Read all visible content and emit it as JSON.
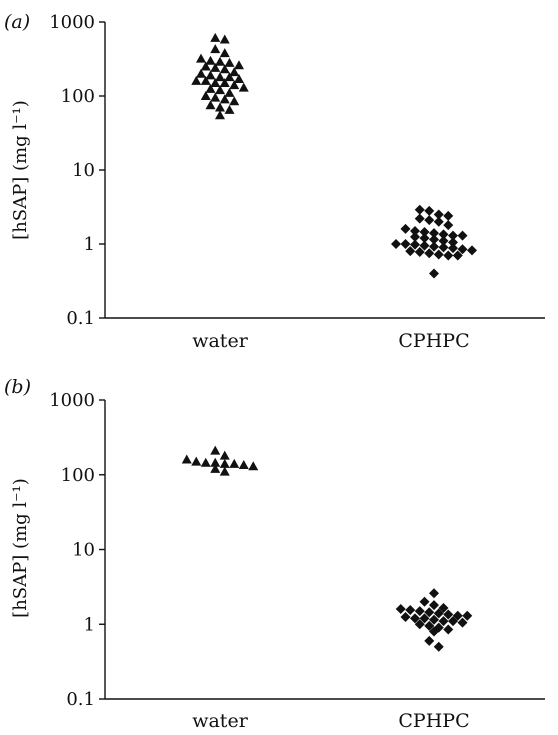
{
  "chart_data": [
    {
      "type": "scatter",
      "panel_label": "(a)",
      "ylabel": "[hSAP] (mg l⁻¹)",
      "yscale": "log",
      "ylim": [
        0.1,
        1000
      ],
      "yticks": [
        "1000",
        "100",
        "10",
        "1",
        "0.1"
      ],
      "categories": [
        "water",
        "CPHPC"
      ],
      "series": [
        {
          "category": "water",
          "marker": "triangle",
          "values": [
            610,
            580,
            430,
            380,
            320,
            300,
            290,
            280,
            260,
            250,
            240,
            230,
            210,
            200,
            190,
            180,
            180,
            170,
            160,
            160,
            150,
            150,
            140,
            130,
            125,
            120,
            110,
            100,
            95,
            90,
            85,
            75,
            70,
            65,
            55
          ]
        },
        {
          "category": "CPHPC",
          "marker": "diamond",
          "values": [
            2.9,
            2.8,
            2.5,
            2.4,
            2.2,
            2.1,
            2.0,
            1.8,
            1.6,
            1.5,
            1.45,
            1.4,
            1.35,
            1.3,
            1.3,
            1.25,
            1.2,
            1.15,
            1.1,
            1.05,
            1.0,
            1.0,
            0.98,
            0.95,
            0.92,
            0.9,
            0.88,
            0.85,
            0.82,
            0.8,
            0.78,
            0.75,
            0.72,
            0.7,
            0.7,
            0.4
          ]
        }
      ]
    },
    {
      "type": "scatter",
      "panel_label": "(b)",
      "ylabel": "[hSAP] (mg l⁻¹)",
      "yscale": "log",
      "ylim": [
        0.1,
        1000
      ],
      "yticks": [
        "1000",
        "100",
        "10",
        "1",
        "0.1"
      ],
      "categories": [
        "water",
        "CPHPC"
      ],
      "series": [
        {
          "category": "water",
          "marker": "triangle",
          "values": [
            210,
            180,
            160,
            150,
            145,
            145,
            140,
            140,
            135,
            130,
            120,
            110
          ]
        },
        {
          "category": "CPHPC",
          "marker": "diamond",
          "values": [
            2.6,
            2.0,
            1.8,
            1.65,
            1.6,
            1.55,
            1.5,
            1.45,
            1.4,
            1.35,
            1.3,
            1.3,
            1.25,
            1.2,
            1.2,
            1.15,
            1.1,
            1.1,
            1.05,
            1.0,
            0.95,
            0.9,
            0.85,
            0.8,
            0.6,
            0.5
          ]
        }
      ]
    }
  ]
}
